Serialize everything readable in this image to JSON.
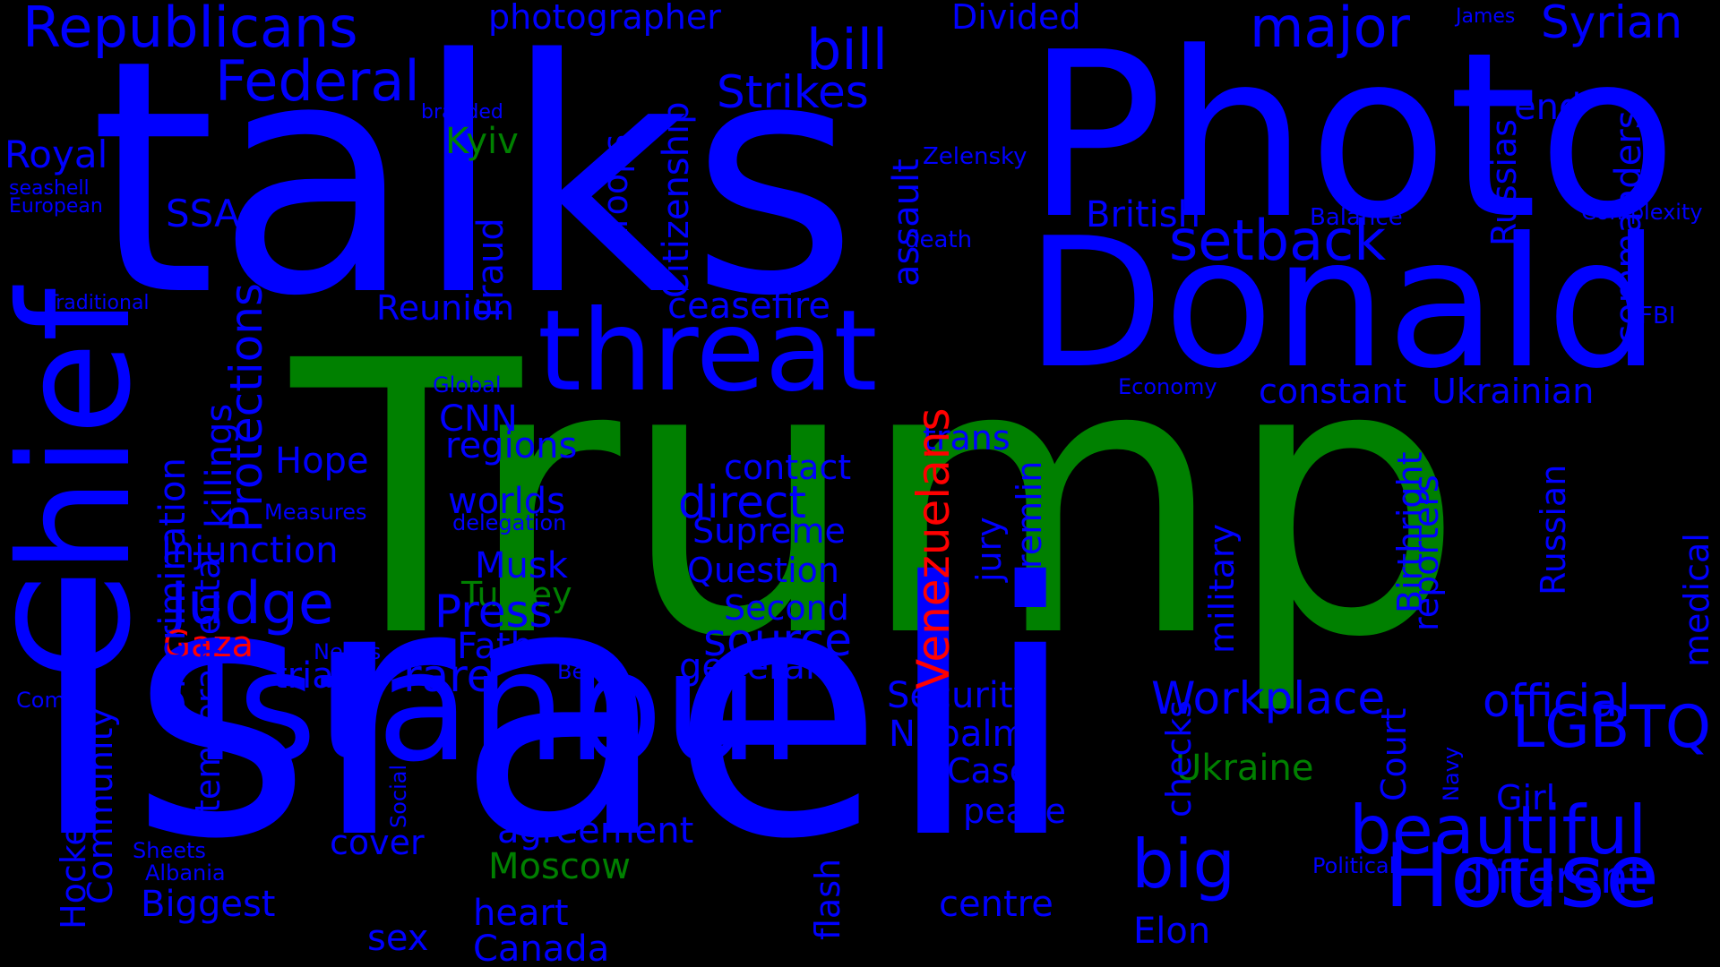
{
  "colors": {
    "background": "#000000",
    "blue": "#0000ff",
    "green": "#008000",
    "red": "#ff0000"
  },
  "words": [
    {
      "text": "Trump",
      "color": "green"
    },
    {
      "text": "talks",
      "color": "blue"
    },
    {
      "text": "Israeli",
      "color": "blue"
    },
    {
      "text": "Photo",
      "color": "blue"
    },
    {
      "text": "Donald",
      "color": "blue"
    },
    {
      "text": "Istanbul",
      "color": "blue"
    },
    {
      "text": "Chief",
      "color": "blue"
    },
    {
      "text": "threat",
      "color": "blue"
    },
    {
      "text": "House",
      "color": "blue"
    },
    {
      "text": "Republicans",
      "color": "blue"
    },
    {
      "text": "Federal",
      "color": "blue"
    },
    {
      "text": "bill",
      "color": "blue"
    },
    {
      "text": "major",
      "color": "blue"
    },
    {
      "text": "Syrian",
      "color": "blue"
    },
    {
      "text": "photographer",
      "color": "blue"
    },
    {
      "text": "Divided",
      "color": "blue"
    },
    {
      "text": "James",
      "color": "blue"
    },
    {
      "text": "Strikes",
      "color": "blue"
    },
    {
      "text": "end",
      "color": "blue"
    },
    {
      "text": "branded",
      "color": "blue"
    },
    {
      "text": "Kyiv",
      "color": "green"
    },
    {
      "text": "Royal",
      "color": "blue"
    },
    {
      "text": "seashell",
      "color": "blue"
    },
    {
      "text": "European",
      "color": "blue"
    },
    {
      "text": "SSA",
      "color": "blue"
    },
    {
      "text": "Zelensky",
      "color": "blue"
    },
    {
      "text": "British",
      "color": "blue"
    },
    {
      "text": "Balance",
      "color": "blue"
    },
    {
      "text": "Complexity",
      "color": "blue"
    },
    {
      "text": "death",
      "color": "blue"
    },
    {
      "text": "setback",
      "color": "blue"
    },
    {
      "text": "Traditional",
      "color": "blue"
    },
    {
      "text": "Reunion",
      "color": "blue"
    },
    {
      "text": "ceasefire",
      "color": "blue"
    },
    {
      "text": "FBI",
      "color": "blue"
    },
    {
      "text": "Global",
      "color": "blue"
    },
    {
      "text": "Economy",
      "color": "blue"
    },
    {
      "text": "constant",
      "color": "blue"
    },
    {
      "text": "Ukrainian",
      "color": "blue"
    },
    {
      "text": "CNN",
      "color": "blue"
    },
    {
      "text": "regions",
      "color": "blue"
    },
    {
      "text": "trans",
      "color": "blue"
    },
    {
      "text": "Hope",
      "color": "blue"
    },
    {
      "text": "contact",
      "color": "blue"
    },
    {
      "text": "direct",
      "color": "blue"
    },
    {
      "text": "worlds",
      "color": "blue"
    },
    {
      "text": "Measures",
      "color": "blue"
    },
    {
      "text": "delegation",
      "color": "blue"
    },
    {
      "text": "Supreme",
      "color": "blue"
    },
    {
      "text": "Injunction",
      "color": "blue"
    },
    {
      "text": "Musk",
      "color": "blue"
    },
    {
      "text": "Judge",
      "color": "blue"
    },
    {
      "text": "Turkey",
      "color": "green"
    },
    {
      "text": "Question",
      "color": "blue"
    },
    {
      "text": "Press",
      "color": "blue"
    },
    {
      "text": "Second",
      "color": "blue"
    },
    {
      "text": "source",
      "color": "blue"
    },
    {
      "text": "Gaza",
      "color": "red"
    },
    {
      "text": "Father",
      "color": "blue"
    },
    {
      "text": "Needs",
      "color": "blue"
    },
    {
      "text": "trial",
      "color": "blue"
    },
    {
      "text": "rare",
      "color": "blue"
    },
    {
      "text": "Better",
      "color": "blue"
    },
    {
      "text": "general",
      "color": "blue"
    },
    {
      "text": "Security",
      "color": "blue"
    },
    {
      "text": "Workplace",
      "color": "blue"
    },
    {
      "text": "official",
      "color": "blue"
    },
    {
      "text": "Comey",
      "color": "blue"
    },
    {
      "text": "Napalm",
      "color": "blue"
    },
    {
      "text": "LGBTQ",
      "color": "blue"
    },
    {
      "text": "Case",
      "color": "blue"
    },
    {
      "text": "Ukraine",
      "color": "green"
    },
    {
      "text": "Girl",
      "color": "blue"
    },
    {
      "text": "peace",
      "color": "blue"
    },
    {
      "text": "beautiful",
      "color": "blue"
    },
    {
      "text": "agreement",
      "color": "blue"
    },
    {
      "text": "cover",
      "color": "blue"
    },
    {
      "text": "Sheets",
      "color": "blue"
    },
    {
      "text": "big",
      "color": "blue"
    },
    {
      "text": "Albania",
      "color": "blue"
    },
    {
      "text": "Moscow",
      "color": "green"
    },
    {
      "text": "Political",
      "color": "blue"
    },
    {
      "text": "different",
      "color": "blue"
    },
    {
      "text": "Biggest",
      "color": "blue"
    },
    {
      "text": "centre",
      "color": "blue"
    },
    {
      "text": "heart",
      "color": "blue"
    },
    {
      "text": "sex",
      "color": "blue"
    },
    {
      "text": "Elon",
      "color": "blue"
    },
    {
      "text": "Canada",
      "color": "blue"
    },
    {
      "text": "Protections",
      "color": "blue"
    },
    {
      "text": "Discrimination",
      "color": "blue"
    },
    {
      "text": "killings",
      "color": "blue"
    },
    {
      "text": "Fraud",
      "color": "blue"
    },
    {
      "text": "troops",
      "color": "blue"
    },
    {
      "text": "Citizenship",
      "color": "blue"
    },
    {
      "text": "assault",
      "color": "blue"
    },
    {
      "text": "Russias",
      "color": "blue"
    },
    {
      "text": "commanders",
      "color": "blue"
    },
    {
      "text": "Venezuelans",
      "color": "red"
    },
    {
      "text": "jury",
      "color": "blue"
    },
    {
      "text": "Kremlin",
      "color": "blue"
    },
    {
      "text": "military",
      "color": "blue"
    },
    {
      "text": "reporters",
      "color": "blue"
    },
    {
      "text": "Birthright",
      "color": "blue"
    },
    {
      "text": "Russian",
      "color": "blue"
    },
    {
      "text": "medical",
      "color": "blue"
    },
    {
      "text": "temperamental",
      "color": "blue"
    },
    {
      "text": "Social",
      "color": "blue"
    },
    {
      "text": "Community",
      "color": "blue"
    },
    {
      "text": "Hockey",
      "color": "blue"
    },
    {
      "text": "flash",
      "color": "blue"
    },
    {
      "text": "checks",
      "color": "blue"
    },
    {
      "text": "Court",
      "color": "blue"
    },
    {
      "text": "Navy",
      "color": "blue"
    },
    {
      "text": "summit",
      "color": "blue"
    }
  ]
}
